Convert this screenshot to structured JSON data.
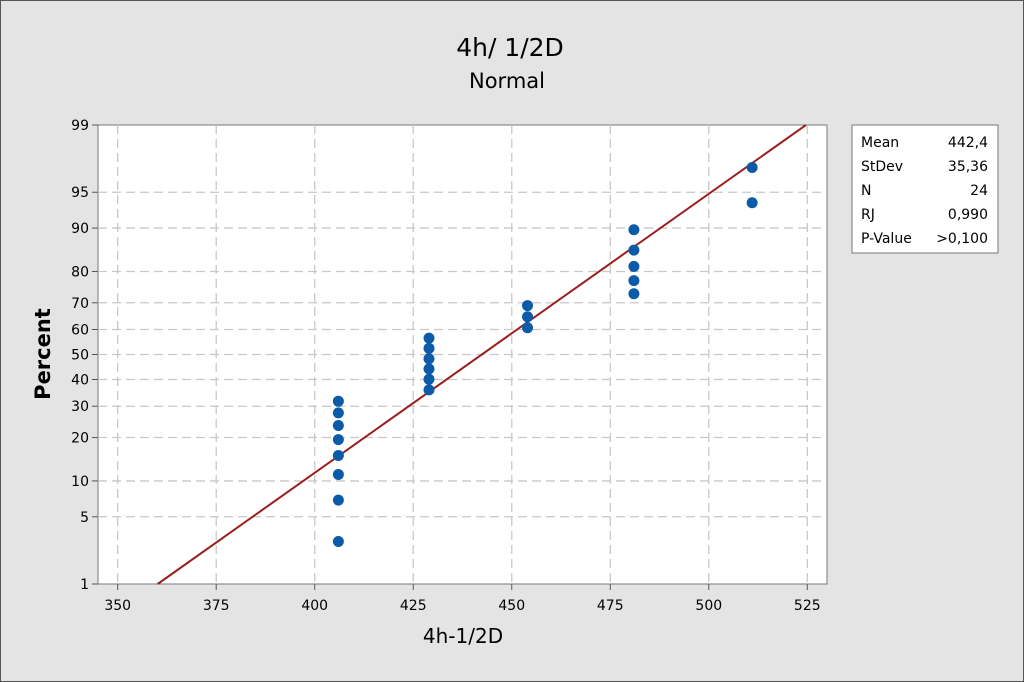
{
  "chart_data": {
    "type": "scatter",
    "title": "4h/ 1/2D",
    "subtitle": "Normal",
    "xlabel": "4h-1/2D",
    "ylabel": "Percent",
    "xlim": [
      345,
      530
    ],
    "ylim": [
      1,
      99
    ],
    "y_scale": "normal-probability",
    "x_ticks": [
      350,
      375,
      400,
      425,
      450,
      475,
      500,
      525
    ],
    "x_tick_labels": [
      "350",
      "375",
      "400",
      "425",
      "450",
      "475",
      "500",
      "525"
    ],
    "y_ticks": [
      1,
      5,
      10,
      20,
      30,
      40,
      50,
      60,
      70,
      80,
      90,
      95,
      99
    ],
    "y_tick_labels": [
      "1",
      "5",
      "10",
      "20",
      "30",
      "40",
      "50",
      "60",
      "70",
      "80",
      "90",
      "95",
      "99"
    ],
    "grid": true,
    "points": [
      {
        "x": 406,
        "y": 2.9
      },
      {
        "x": 406,
        "y": 7.0
      },
      {
        "x": 406,
        "y": 11.2
      },
      {
        "x": 406,
        "y": 15.3
      },
      {
        "x": 406,
        "y": 19.4
      },
      {
        "x": 406,
        "y": 23.6
      },
      {
        "x": 406,
        "y": 27.7
      },
      {
        "x": 406,
        "y": 31.8
      },
      {
        "x": 429,
        "y": 36.0
      },
      {
        "x": 429,
        "y": 40.1
      },
      {
        "x": 429,
        "y": 44.2
      },
      {
        "x": 429,
        "y": 48.3
      },
      {
        "x": 429,
        "y": 52.5
      },
      {
        "x": 429,
        "y": 56.6
      },
      {
        "x": 454,
        "y": 60.7
      },
      {
        "x": 454,
        "y": 64.9
      },
      {
        "x": 454,
        "y": 69.0
      },
      {
        "x": 481,
        "y": 73.1
      },
      {
        "x": 481,
        "y": 77.3
      },
      {
        "x": 481,
        "y": 81.4
      },
      {
        "x": 481,
        "y": 85.5
      },
      {
        "x": 481,
        "y": 89.7
      },
      {
        "x": 511,
        "y": 93.8
      },
      {
        "x": 511,
        "y": 97.1
      }
    ],
    "fit_line": {
      "mean": 442.4,
      "stdev": 35.36
    },
    "colors": {
      "points": "#0b5ba8",
      "line": "#9b1c1c",
      "grid": "#c8c8c8",
      "background": "#e4e4e4",
      "plot": "#ffffff"
    },
    "legend_position": "top-right",
    "stats": [
      {
        "label": "Mean",
        "value": "442,4"
      },
      {
        "label": "StDev",
        "value": "35,36"
      },
      {
        "label": "N",
        "value": "24"
      },
      {
        "label": "RJ",
        "value": "0,990"
      },
      {
        "label": "P-Value",
        "value": ">0,100"
      }
    ]
  }
}
